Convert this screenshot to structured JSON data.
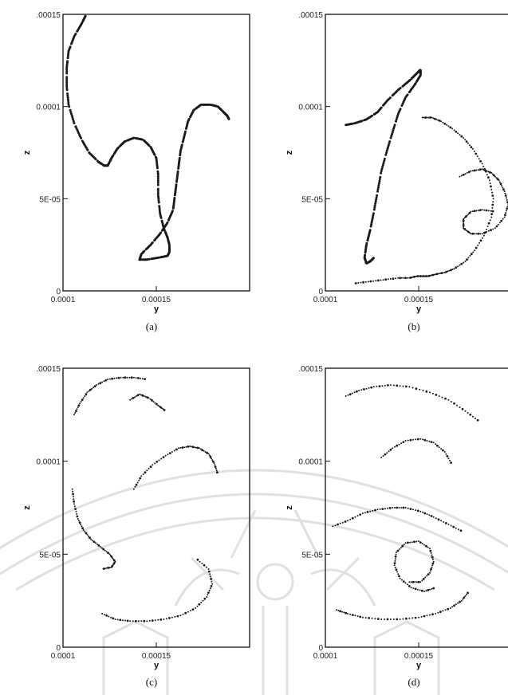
{
  "chart_data": [
    {
      "panel": "(a)",
      "type": "scatter",
      "xlabel": "y",
      "ylabel": "z",
      "xlim": [
        0.0001,
        0.0002
      ],
      "ylim": [
        0,
        0.00015
      ],
      "x_tick_labels": [
        "0.0001",
        "0.00015"
      ],
      "y_tick_labels": [
        ".00015",
        "0.0001",
        "5E-05",
        "0"
      ],
      "y_ticks": [
        0.00015,
        0.0001,
        5e-05,
        0
      ],
      "x_ticks": [
        0.0001,
        0.00015
      ],
      "series": [
        {
          "style": "dashed",
          "x": [
            0.000112,
            0.00011,
            0.000106,
            0.000103,
            0.000102,
            0.000102,
            0.000103,
            0.000106,
            0.00011,
            0.000114,
            0.000119,
            0.000122,
            0.000124,
            0.000126,
            0.000129,
            0.000133,
            0.000138,
            0.000143,
            0.000147,
            0.00015,
            0.000151,
            0.000151,
            0.000152,
            0.000154,
            0.000156,
            0.000157,
            0.000157,
            0.000156,
            0.000151,
            0.000145,
            0.000141,
            0.000142,
            0.000147,
            0.000152,
            0.000156,
            0.000159,
            0.00016,
            0.000161,
            0.000162,
            0.000163,
            0.000165,
            0.000167,
            0.00017,
            0.000174,
            0.000179,
            0.000183,
            0.000186,
            0.000188,
            0.000189
          ],
          "y": [
            0.000149,
            0.000145,
            0.000138,
            0.00013,
            0.000121,
            0.000111,
            0.000101,
            9.1e-05,
            8.2e-05,
            7.5e-05,
            7e-05,
            6.8e-05,
            6.8e-05,
            7.2e-05,
            7.7e-05,
            8.1e-05,
            8.3e-05,
            8.2e-05,
            7.8e-05,
            7.2e-05,
            6.3e-05,
            5.2e-05,
            4.2e-05,
            3.4e-05,
            2.9e-05,
            2.5e-05,
            2.1e-05,
            1.9e-05,
            1.8e-05,
            1.7e-05,
            1.7e-05,
            2e-05,
            2.5e-05,
            3.1e-05,
            3.7e-05,
            4.4e-05,
            5.2e-05,
            6e-05,
            6.8e-05,
            7.6e-05,
            8.4e-05,
            9.2e-05,
            9.8e-05,
            0.000101,
            0.000101,
            0.0001,
            9.7e-05,
            9.5e-05,
            9.3e-05
          ]
        }
      ]
    },
    {
      "panel": "(b)",
      "type": "scatter",
      "xlabel": "y",
      "ylabel": "z",
      "xlim": [
        0.0001,
        0.0002
      ],
      "ylim": [
        0,
        0.00015
      ],
      "x_tick_labels": [
        "0.0001",
        "0.00015"
      ],
      "y_tick_labels": [
        ".00015",
        "0.0001",
        "5E-05",
        "0"
      ],
      "y_ticks": [
        0.00015,
        0.0001,
        5e-05,
        0
      ],
      "x_ticks": [
        0.0001,
        0.00015
      ],
      "series": [
        {
          "style": "dashed",
          "x": [
            0.000111,
            0.000116,
            0.000122,
            0.000128,
            0.000133,
            0.000139,
            0.000145,
            0.000149,
            0.000151,
            0.000151,
            0.000148,
            0.000143,
            0.000139,
            0.000136,
            0.000133,
            0.00013,
            0.000128,
            0.000126,
            0.000124,
            0.000122,
            0.000121,
            0.000122,
            0.000124,
            0.000126
          ],
          "y": [
            9e-05,
            9.1e-05,
            9.3e-05,
            9.7e-05,
            0.000103,
            0.000109,
            0.000114,
            0.000118,
            0.00012,
            0.000117,
            0.000112,
            0.000105,
            9.6e-05,
            8.6e-05,
            7.6e-05,
            6.5e-05,
            5.4e-05,
            4.3e-05,
            3.3e-05,
            2.5e-05,
            1.8e-05,
            1.5e-05,
            1.6e-05,
            1.8e-05
          ]
        },
        {
          "style": "dotted",
          "x": [
            0.000152,
            0.000157,
            0.000162,
            0.000168,
            0.000174,
            0.000179,
            0.000184,
            0.000188,
            0.00019,
            0.000189,
            0.000185,
            0.00018,
            0.000175,
            0.000169,
            0.000164,
            0.000159,
            0.000155,
            0.000152,
            0.000149,
            0.000145,
            0.000139,
            0.000131,
            0.000123,
            0.000115
          ],
          "y": [
            9.4e-05,
            9.4e-05,
            9.2e-05,
            8.8e-05,
            8.3e-05,
            7.7e-05,
            6.9e-05,
            6e-05,
            5e-05,
            4e-05,
            3e-05,
            2.2e-05,
            1.6e-05,
            1.2e-05,
            1e-05,
            9e-06,
            8e-06,
            8e-06,
            8e-06,
            7e-06,
            7e-06,
            6e-06,
            5e-06,
            4e-06
          ]
        },
        {
          "style": "dotted",
          "x": [
            0.000172,
            0.000178,
            0.000184,
            0.000189,
            0.000193,
            0.000196,
            0.000198,
            0.000196,
            0.000191,
            0.000184,
            0.000178,
            0.000174,
            0.000174,
            0.000178,
            0.000184,
            0.000191
          ],
          "y": [
            6.2e-05,
            6.5e-05,
            6.6e-05,
            6.4e-05,
            6e-05,
            5.4e-05,
            4.7e-05,
            4e-05,
            3.4e-05,
            3.1e-05,
            3.1e-05,
            3.4e-05,
            3.9e-05,
            4.3e-05,
            4.4e-05,
            4.3e-05
          ]
        }
      ]
    },
    {
      "panel": "(c)",
      "type": "scatter",
      "xlabel": "y",
      "ylabel": "z",
      "xlim": [
        0.0001,
        0.0002
      ],
      "ylim": [
        0,
        0.00015
      ],
      "x_tick_labels": [
        "0.0001",
        "0.00015"
      ],
      "y_tick_labels": [
        ".00015",
        "0.0001",
        "5E-05",
        "0"
      ],
      "y_ticks": [
        0.00015,
        0.0001,
        5e-05,
        0
      ],
      "x_ticks": [
        0.0001,
        0.00015
      ],
      "series": [
        {
          "style": "dotted",
          "x": [
            0.000106,
            0.000109,
            0.000113,
            0.000118,
            0.000124,
            0.000131,
            0.000138,
            0.000145
          ],
          "y": [
            0.000125,
            0.000131,
            0.000137,
            0.000141,
            0.000144,
            0.000145,
            0.000145,
            0.000144
          ]
        },
        {
          "style": "dotted",
          "x": [
            0.000105,
            0.000106,
            0.000108,
            0.000111,
            0.000115,
            0.00012,
            0.000125,
            0.000128,
            0.000126,
            0.000121
          ],
          "y": [
            8.5e-05,
            7.7e-05,
            6.9e-05,
            6.3e-05,
            5.8e-05,
            5.4e-05,
            5e-05,
            4.6e-05,
            4.3e-05,
            4.2e-05
          ]
        },
        {
          "style": "dotted",
          "x": [
            0.000138,
            0.000142,
            0.000148,
            0.000155,
            0.000162,
            0.000168,
            0.000173,
            0.000178,
            0.000181,
            0.000183
          ],
          "y": [
            8.5e-05,
            9.2e-05,
            9.8e-05,
            0.000103,
            0.000107,
            0.000108,
            0.000107,
            0.000104,
            9.9e-05,
            9.3e-05
          ]
        },
        {
          "style": "dotted",
          "x": [
            0.000121,
            0.000128,
            0.000136,
            0.000145,
            0.000154,
            0.000163,
            0.000171,
            0.000177,
            0.00018,
            0.000178,
            0.000171
          ],
          "y": [
            1.8e-05,
            1.5e-05,
            1.4e-05,
            1.4e-05,
            1.5e-05,
            1.7e-05,
            2.1e-05,
            2.7e-05,
            3.4e-05,
            4.2e-05,
            4.8e-05
          ]
        },
        {
          "style": "dotted",
          "x": [
            0.000136,
            0.000141,
            0.000146,
            0.000151,
            0.000155
          ],
          "y": [
            0.000133,
            0.000136,
            0.000134,
            0.00013,
            0.000127
          ]
        }
      ]
    },
    {
      "panel": "(d)",
      "type": "scatter",
      "xlabel": "y",
      "ylabel": "z",
      "xlim": [
        0.0001,
        0.0002
      ],
      "ylim": [
        0,
        0.00015
      ],
      "x_tick_labels": [
        "0.0001",
        "0.00015"
      ],
      "y_tick_labels": [
        ".00015",
        "0.0001",
        "5E-05",
        "0"
      ],
      "y_ticks": [
        0.00015,
        0.0001,
        5e-05,
        0
      ],
      "x_ticks": [
        0.0001,
        0.00015
      ],
      "series": [
        {
          "style": "dotted",
          "x": [
            0.000145,
            0.000151,
            0.000156,
            0.000158,
            0.000156,
            0.00015,
            0.000143,
            0.000138,
            0.000137,
            0.00014,
            0.000146,
            0.000153,
            0.000159
          ],
          "y": [
            3.5e-05,
            3.5e-05,
            4e-05,
            4.6e-05,
            5.3e-05,
            5.7e-05,
            5.6e-05,
            5.1e-05,
            4.4e-05,
            3.7e-05,
            3.2e-05,
            3e-05,
            3.2e-05
          ]
        },
        {
          "style": "dotted",
          "x": [
            0.000106,
            0.000112,
            0.00012,
            0.00013,
            0.00014,
            0.00015,
            0.000159,
            0.000167,
            0.000173,
            0.000177
          ],
          "y": [
            2e-05,
            1.8e-05,
            1.6e-05,
            1.5e-05,
            1.5e-05,
            1.6e-05,
            1.8e-05,
            2.1e-05,
            2.5e-05,
            3e-05
          ]
        },
        {
          "style": "dotted",
          "x": [
            0.00013,
            0.000136,
            0.000143,
            0.000151,
            0.000158,
            0.000164,
            0.000168
          ],
          "y": [
            0.000102,
            0.000107,
            0.000111,
            0.000112,
            0.00011,
            0.000105,
            9.8e-05
          ]
        },
        {
          "style": "dotted",
          "x": [
            0.000111,
            0.000118,
            0.000126,
            0.000135,
            0.000145,
            0.000156,
            0.000166,
            0.000175,
            0.000183
          ],
          "y": [
            0.000135,
            0.000138,
            0.00014,
            0.000141,
            0.00014,
            0.000137,
            0.000133,
            0.000127,
            0.000121
          ]
        },
        {
          "style": "dotted",
          "x": [
            0.000104,
            0.000112,
            0.00012,
            0.000128,
            0.000136,
            0.000143,
            0.000151,
            0.000158,
            0.000166,
            0.000174
          ],
          "y": [
            6.5e-05,
            6.8e-05,
            7.2e-05,
            7.4e-05,
            7.5e-05,
            7.5e-05,
            7.3e-05,
            7e-05,
            6.6e-05,
            6.2e-05
          ]
        }
      ]
    }
  ]
}
